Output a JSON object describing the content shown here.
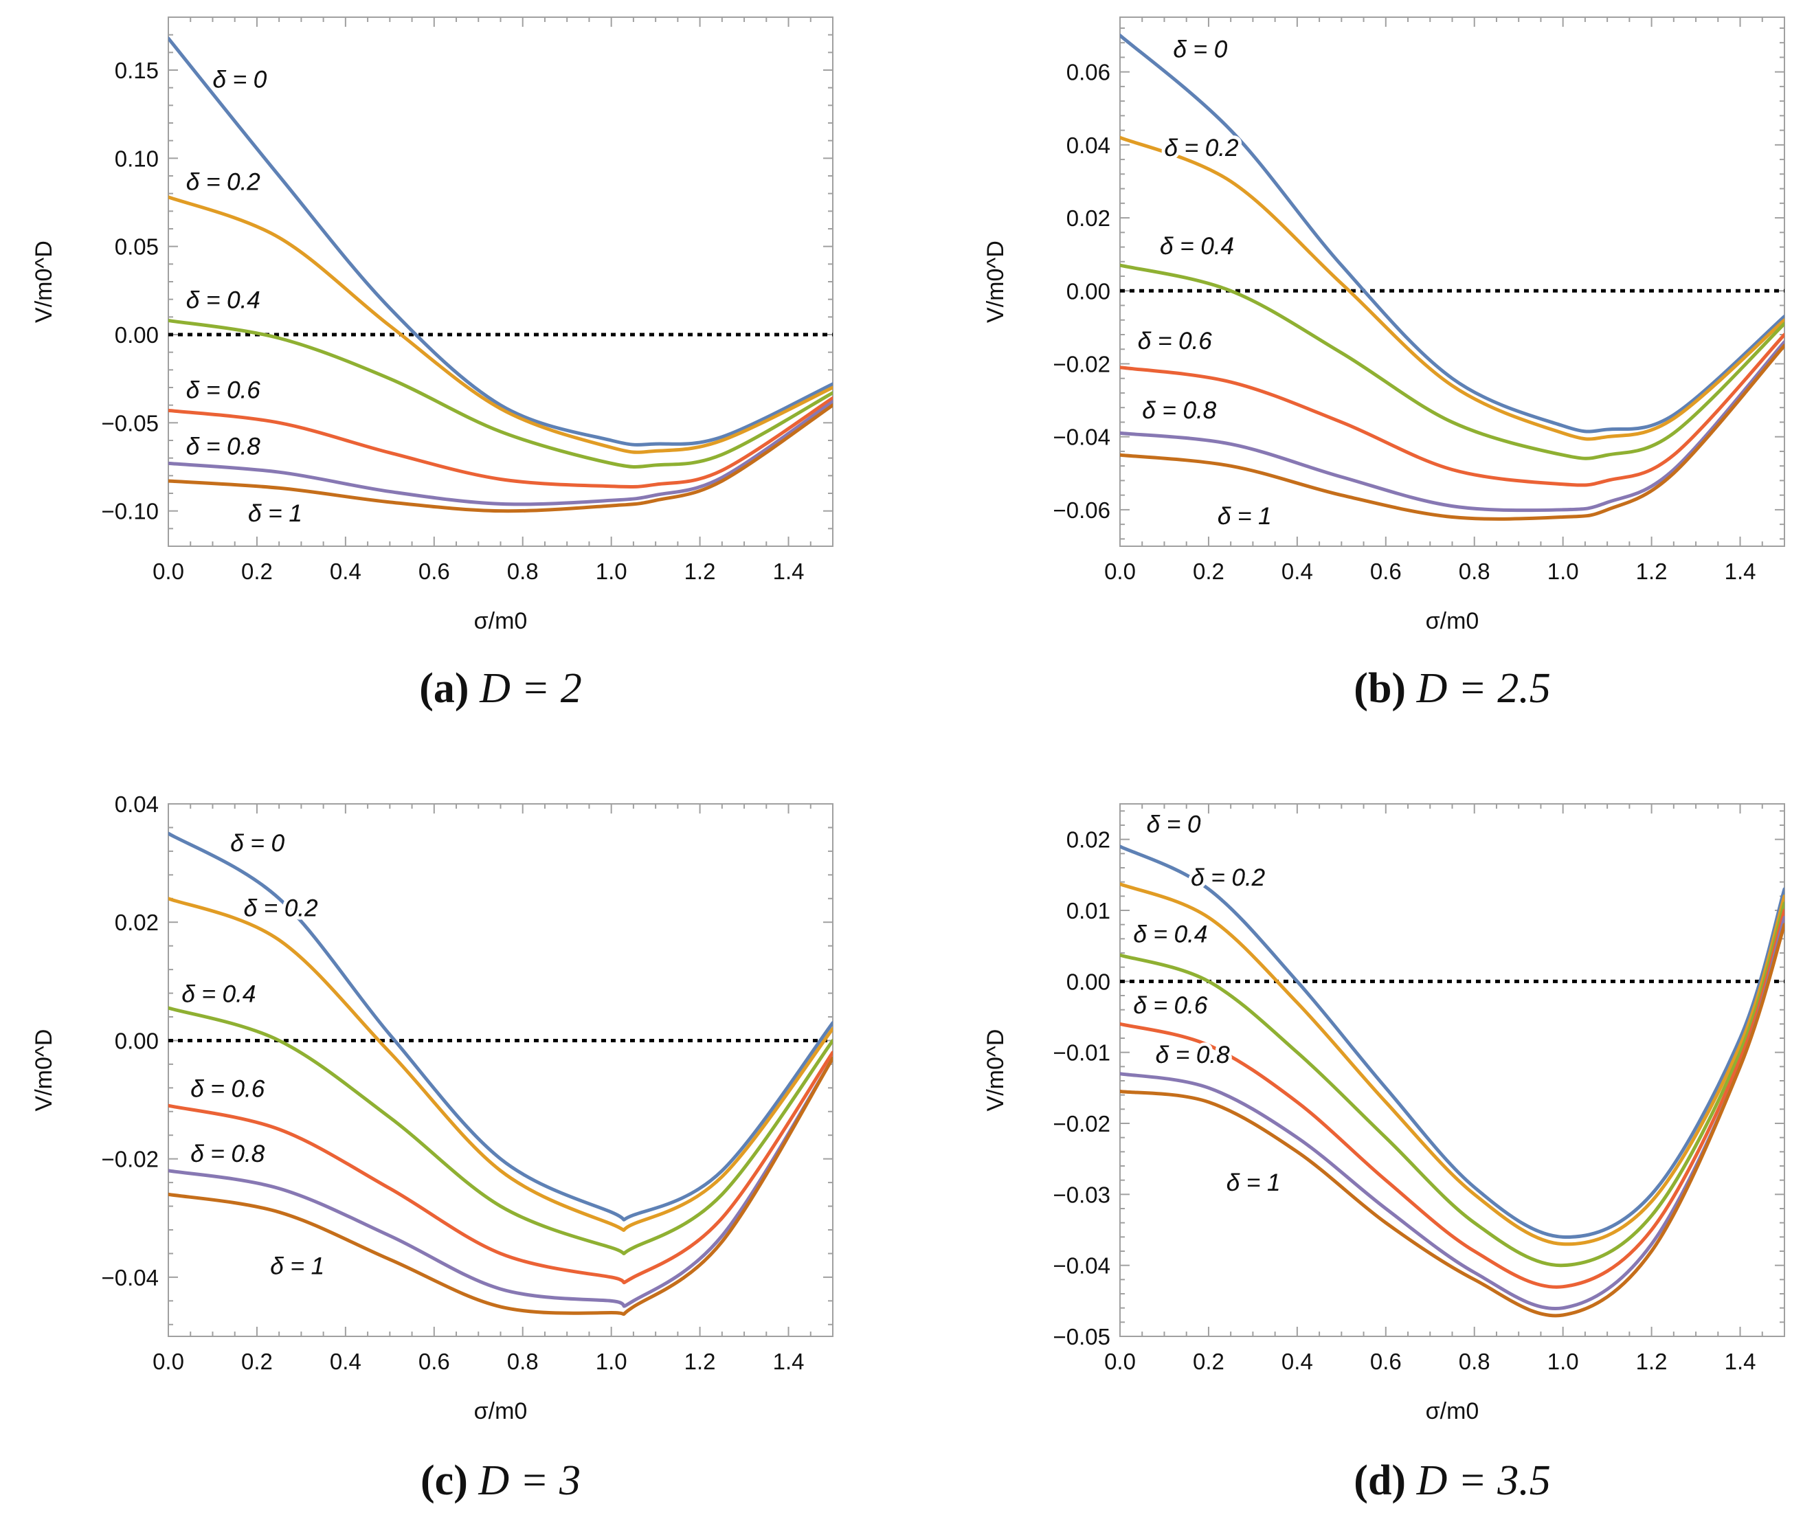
{
  "chart_data": [
    {
      "type": "line",
      "panel_label": "(a)",
      "caption": "D = 2",
      "xlabel": "σ/m0",
      "ylabel": "V/m0^D",
      "xlim": [
        0,
        1.5
      ],
      "ylim": [
        -0.12,
        0.18
      ],
      "xticks": [
        0.0,
        0.2,
        0.4,
        0.6,
        0.8,
        1.0,
        1.2,
        1.4
      ],
      "xtick_labels": [
        "0.0",
        "0.2",
        "0.4",
        "0.6",
        "0.8",
        "1.0",
        "1.2",
        "1.4"
      ],
      "yticks": [
        0.15,
        0.1,
        0.05,
        0.0,
        -0.05,
        -0.1
      ],
      "ytick_labels": [
        "0.15",
        "0.10",
        "0.05",
        "0.00",
        "−0.05",
        "−0.10"
      ],
      "reference_line": {
        "y": 0,
        "style": "dotted"
      },
      "x": [
        0.0,
        0.25,
        0.5,
        0.75,
        1.0,
        1.1,
        1.25,
        1.5
      ],
      "series": [
        {
          "name": "δ = 0",
          "label_anchor": [
            0.1,
            0.14
          ],
          "values": [
            0.168,
            0.09,
            0.015,
            -0.04,
            -0.06,
            -0.062,
            -0.058,
            -0.028
          ]
        },
        {
          "name": "δ = 0.2",
          "label_anchor": [
            0.04,
            0.082
          ],
          "values": [
            0.078,
            0.055,
            0.005,
            -0.042,
            -0.064,
            -0.066,
            -0.06,
            -0.03
          ]
        },
        {
          "name": "δ = 0.4",
          "label_anchor": [
            0.04,
            0.015
          ],
          "values": [
            0.008,
            -0.002,
            -0.025,
            -0.055,
            -0.073,
            -0.074,
            -0.068,
            -0.033
          ]
        },
        {
          "name": "δ = 0.6",
          "label_anchor": [
            0.04,
            -0.036
          ],
          "values": [
            -0.043,
            -0.05,
            -0.067,
            -0.082,
            -0.086,
            -0.085,
            -0.077,
            -0.036
          ]
        },
        {
          "name": "δ = 0.8",
          "label_anchor": [
            0.04,
            -0.068
          ],
          "values": [
            -0.073,
            -0.078,
            -0.089,
            -0.096,
            -0.094,
            -0.091,
            -0.081,
            -0.038
          ]
        },
        {
          "name": "δ = 1",
          "label_anchor": [
            0.18,
            -0.106
          ],
          "values": [
            -0.083,
            -0.087,
            -0.095,
            -0.1,
            -0.097,
            -0.094,
            -0.083,
            -0.04
          ]
        }
      ]
    },
    {
      "type": "line",
      "panel_label": "(b)",
      "caption": "D = 2.5",
      "xlabel": "σ/m0",
      "ylabel": "V/m0^D",
      "xlim": [
        0,
        1.5
      ],
      "ylim": [
        -0.07,
        0.075
      ],
      "xticks": [
        0.0,
        0.2,
        0.4,
        0.6,
        0.8,
        1.0,
        1.2,
        1.4
      ],
      "xtick_labels": [
        "0.0",
        "0.2",
        "0.4",
        "0.6",
        "0.8",
        "1.0",
        "1.2",
        "1.4"
      ],
      "yticks": [
        0.06,
        0.04,
        0.02,
        0.0,
        -0.02,
        -0.04,
        -0.06
      ],
      "ytick_labels": [
        "0.06",
        "0.04",
        "0.02",
        "0.00",
        "−0.02",
        "−0.04",
        "−0.06"
      ],
      "reference_line": {
        "y": 0,
        "style": "dotted"
      },
      "x": [
        0.0,
        0.25,
        0.5,
        0.75,
        1.0,
        1.1,
        1.25,
        1.5
      ],
      "series": [
        {
          "name": "δ = 0",
          "label_anchor": [
            0.12,
            0.064
          ],
          "values": [
            0.07,
            0.044,
            0.007,
            -0.024,
            -0.037,
            -0.038,
            -0.034,
            -0.007
          ]
        },
        {
          "name": "δ = 0.2",
          "label_anchor": [
            0.1,
            0.037
          ],
          "values": [
            0.042,
            0.03,
            0.002,
            -0.026,
            -0.039,
            -0.04,
            -0.035,
            -0.008
          ]
        },
        {
          "name": "δ = 0.4",
          "label_anchor": [
            0.09,
            0.01
          ],
          "values": [
            0.007,
            0.0,
            -0.017,
            -0.036,
            -0.045,
            -0.045,
            -0.039,
            -0.009
          ]
        },
        {
          "name": "δ = 0.6",
          "label_anchor": [
            0.04,
            -0.016
          ],
          "values": [
            -0.021,
            -0.025,
            -0.036,
            -0.049,
            -0.053,
            -0.052,
            -0.045,
            -0.012
          ]
        },
        {
          "name": "δ = 0.8",
          "label_anchor": [
            0.05,
            -0.035
          ],
          "values": [
            -0.039,
            -0.042,
            -0.051,
            -0.059,
            -0.06,
            -0.058,
            -0.049,
            -0.014
          ]
        },
        {
          "name": "δ = 1",
          "label_anchor": [
            0.22,
            -0.064
          ],
          "values": [
            -0.045,
            -0.048,
            -0.056,
            -0.062,
            -0.062,
            -0.06,
            -0.05,
            -0.015
          ]
        }
      ]
    },
    {
      "type": "line",
      "panel_label": "(c)",
      "caption": "D = 3",
      "xlabel": "σ/m0",
      "ylabel": "V/m0^D",
      "xlim": [
        0,
        1.5
      ],
      "ylim": [
        -0.05,
        0.04
      ],
      "xticks": [
        0.0,
        0.2,
        0.4,
        0.6,
        0.8,
        1.0,
        1.2,
        1.4
      ],
      "xtick_labels": [
        "0.0",
        "0.2",
        "0.4",
        "0.6",
        "0.8",
        "1.0",
        "1.2",
        "1.4"
      ],
      "yticks": [
        0.04,
        0.02,
        0.0,
        -0.02,
        -0.04
      ],
      "ytick_labels": [
        "0.04",
        "0.02",
        "0.00",
        "−0.02",
        "−0.04"
      ],
      "reference_line": {
        "y": 0,
        "style": "dotted"
      },
      "x": [
        0.0,
        0.25,
        0.5,
        0.75,
        1.0,
        1.05,
        1.25,
        1.5
      ],
      "series": [
        {
          "name": "δ = 0",
          "label_anchor": [
            0.14,
            0.032
          ],
          "values": [
            0.035,
            0.024,
            0.001,
            -0.02,
            -0.029,
            -0.0295,
            -0.022,
            0.003
          ]
        },
        {
          "name": "δ = 0.2",
          "label_anchor": [
            0.17,
            0.021
          ],
          "values": [
            0.024,
            0.017,
            -0.002,
            -0.022,
            -0.031,
            -0.031,
            -0.023,
            0.002
          ]
        },
        {
          "name": "δ = 0.4",
          "label_anchor": [
            0.03,
            0.0065
          ],
          "values": [
            0.0055,
            0.0,
            -0.013,
            -0.028,
            -0.035,
            -0.035,
            -0.026,
            0.0
          ]
        },
        {
          "name": "δ = 0.6",
          "label_anchor": [
            0.05,
            -0.0095
          ],
          "values": [
            -0.011,
            -0.015,
            -0.025,
            -0.036,
            -0.04,
            -0.04,
            -0.03,
            -0.002
          ]
        },
        {
          "name": "δ = 0.8",
          "label_anchor": [
            0.05,
            -0.0205
          ],
          "values": [
            -0.022,
            -0.025,
            -0.033,
            -0.042,
            -0.044,
            -0.044,
            -0.033,
            -0.003
          ]
        },
        {
          "name": "δ = 1",
          "label_anchor": [
            0.23,
            -0.0395
          ],
          "values": [
            -0.026,
            -0.029,
            -0.037,
            -0.045,
            -0.046,
            -0.045,
            -0.034,
            -0.003
          ]
        }
      ]
    },
    {
      "type": "line",
      "panel_label": "(d)",
      "caption": "D = 3.5",
      "xlabel": "σ/m0",
      "ylabel": "V/m0^D",
      "xlim": [
        0,
        1.5
      ],
      "ylim": [
        -0.05,
        0.025
      ],
      "xticks": [
        0.0,
        0.2,
        0.4,
        0.6,
        0.8,
        1.0,
        1.2,
        1.4
      ],
      "xtick_labels": [
        "0.0",
        "0.2",
        "0.4",
        "0.6",
        "0.8",
        "1.0",
        "1.2",
        "1.4"
      ],
      "yticks": [
        0.02,
        0.01,
        0.0,
        -0.01,
        -0.02,
        -0.03,
        -0.04,
        -0.05
      ],
      "ytick_labels": [
        "0.02",
        "0.01",
        "0.00",
        "−0.01",
        "−0.02",
        "−0.03",
        "−0.04",
        "−0.05"
      ],
      "reference_line": {
        "y": 0,
        "style": "dotted"
      },
      "x": [
        0.0,
        0.2,
        0.4,
        0.6,
        0.8,
        1.0,
        1.2,
        1.4,
        1.5
      ],
      "series": [
        {
          "name": "δ = 0",
          "label_anchor": [
            0.06,
            0.021
          ],
          "values": [
            0.019,
            0.013,
            0.0,
            -0.015,
            -0.029,
            -0.036,
            -0.03,
            -0.008,
            0.013
          ]
        },
        {
          "name": "δ = 0.2",
          "label_anchor": [
            0.16,
            0.0135
          ],
          "values": [
            0.0137,
            0.009,
            -0.003,
            -0.017,
            -0.03,
            -0.037,
            -0.031,
            -0.009,
            0.012
          ]
        },
        {
          "name": "δ = 0.4",
          "label_anchor": [
            0.03,
            0.0055
          ],
          "values": [
            0.0037,
            0.0,
            -0.01,
            -0.022,
            -0.034,
            -0.04,
            -0.033,
            -0.01,
            0.011
          ]
        },
        {
          "name": "δ = 0.6",
          "label_anchor": [
            0.03,
            -0.0045
          ],
          "values": [
            -0.006,
            -0.009,
            -0.017,
            -0.028,
            -0.038,
            -0.043,
            -0.035,
            -0.011,
            0.01
          ]
        },
        {
          "name": "δ = 0.8",
          "label_anchor": [
            0.08,
            -0.0115
          ],
          "values": [
            -0.013,
            -0.015,
            -0.022,
            -0.032,
            -0.041,
            -0.046,
            -0.037,
            -0.012,
            0.009
          ]
        },
        {
          "name": "δ = 1",
          "label_anchor": [
            0.24,
            -0.0295
          ],
          "values": [
            -0.0155,
            -0.017,
            -0.024,
            -0.034,
            -0.042,
            -0.047,
            -0.038,
            -0.012,
            0.008
          ]
        }
      ]
    }
  ],
  "colors": {
    "series": [
      "#5e81b5",
      "#e19c24",
      "#8fb032",
      "#eb6235",
      "#8778b3",
      "#c56e1a"
    ],
    "frame": "#a0a0a0",
    "text": "#111111",
    "reference": "#000000"
  }
}
